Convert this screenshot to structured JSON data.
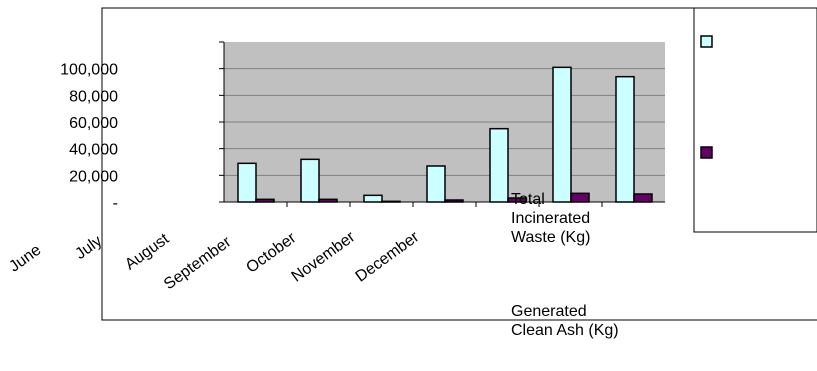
{
  "chart_data": {
    "type": "bar",
    "title": "",
    "xlabel": "",
    "ylabel": "",
    "categories": [
      "June",
      "July",
      "August",
      "September",
      "October",
      "November",
      "December"
    ],
    "series": [
      {
        "name": "Total Incinerated Waste (Kg)",
        "color": "#ccffff",
        "values": [
          29000,
          32000,
          5000,
          27000,
          55000,
          101000,
          94000
        ]
      },
      {
        "name": "Generated Clean Ash (Kg)",
        "color": "#660066",
        "values": [
          2000,
          2000,
          500,
          1500,
          3000,
          6500,
          6000
        ]
      }
    ],
    "ylim": [
      0,
      120000
    ],
    "yticks": [
      {
        "value": 0,
        "label": "-"
      },
      {
        "value": 20000,
        "label": "20,000"
      },
      {
        "value": 40000,
        "label": "40,000"
      },
      {
        "value": 60000,
        "label": "60,000"
      },
      {
        "value": 80000,
        "label": "80,000"
      },
      {
        "value": 100000,
        "label": "100,000"
      }
    ],
    "grid": true,
    "plot_background": "#c0c0c0",
    "legend_position": "right"
  }
}
